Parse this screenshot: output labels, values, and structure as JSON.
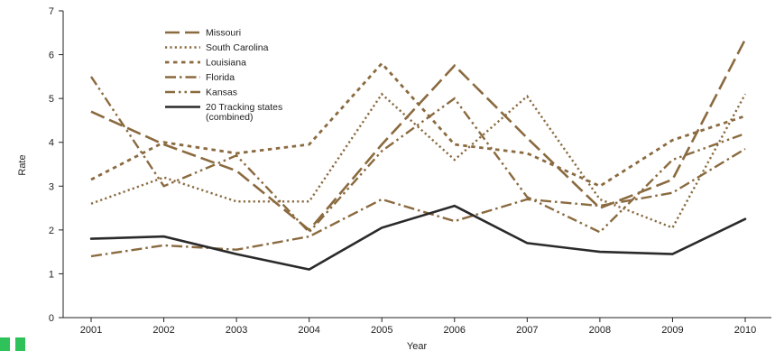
{
  "chart_data": {
    "type": "line",
    "title": "",
    "xlabel": "Year",
    "ylabel": "Rate",
    "x": [
      2001,
      2002,
      2003,
      2004,
      2005,
      2006,
      2007,
      2008,
      2009,
      2010
    ],
    "x_tick_labels": [
      "2001",
      "2002",
      "2003",
      "2004",
      "2005",
      "2006",
      "2007",
      "2008",
      "2009",
      "2010"
    ],
    "ylim": [
      0,
      7
    ],
    "y_ticks": [
      0,
      1,
      2,
      3,
      4,
      5,
      6,
      7
    ],
    "y_tick_labels": [
      "0",
      "1",
      "2",
      "3",
      "4",
      "5",
      "6",
      "7"
    ],
    "grid": false,
    "legend_position": "top-left",
    "series": [
      {
        "name": "Missouri",
        "style": "long-dash",
        "color": "#8a6a3f",
        "values": [
          4.7,
          3.95,
          3.35,
          2.0,
          3.95,
          5.75,
          4.1,
          2.5,
          3.15,
          6.35
        ]
      },
      {
        "name": "South Carolina",
        "style": "dotted",
        "color": "#8a6a3f",
        "values": [
          2.6,
          3.2,
          2.65,
          2.65,
          5.1,
          3.6,
          5.05,
          2.7,
          2.05,
          5.1
        ]
      },
      {
        "name": "Louisiana",
        "style": "square-dot",
        "color": "#8a6a3f",
        "values": [
          3.15,
          4.0,
          3.75,
          3.95,
          5.8,
          3.95,
          3.75,
          3.0,
          4.05,
          4.6
        ]
      },
      {
        "name": "Florida",
        "style": "dash-dot",
        "color": "#8a6a3f",
        "values": [
          1.4,
          1.65,
          1.55,
          1.85,
          2.7,
          2.2,
          2.7,
          2.55,
          2.85,
          3.85
        ]
      },
      {
        "name": "Kansas",
        "style": "dash-dot-dot",
        "color": "#8a6a3f",
        "values": [
          5.5,
          3.0,
          3.7,
          1.95,
          3.8,
          5.0,
          2.75,
          1.95,
          3.6,
          4.2
        ]
      },
      {
        "name": "20 Tracking states (combined)",
        "style": "solid",
        "color": "#2a2a2a",
        "values": [
          1.8,
          1.85,
          1.45,
          1.1,
          2.05,
          2.55,
          1.7,
          1.5,
          1.45,
          2.25
        ]
      }
    ]
  },
  "legend": [
    {
      "label": "Missouri"
    },
    {
      "label": "South Carolina"
    },
    {
      "label": "Louisiana"
    },
    {
      "label": "Florida"
    },
    {
      "label": "Kansas"
    },
    {
      "label": "20 Tracking states",
      "label2": "(combined)"
    }
  ]
}
